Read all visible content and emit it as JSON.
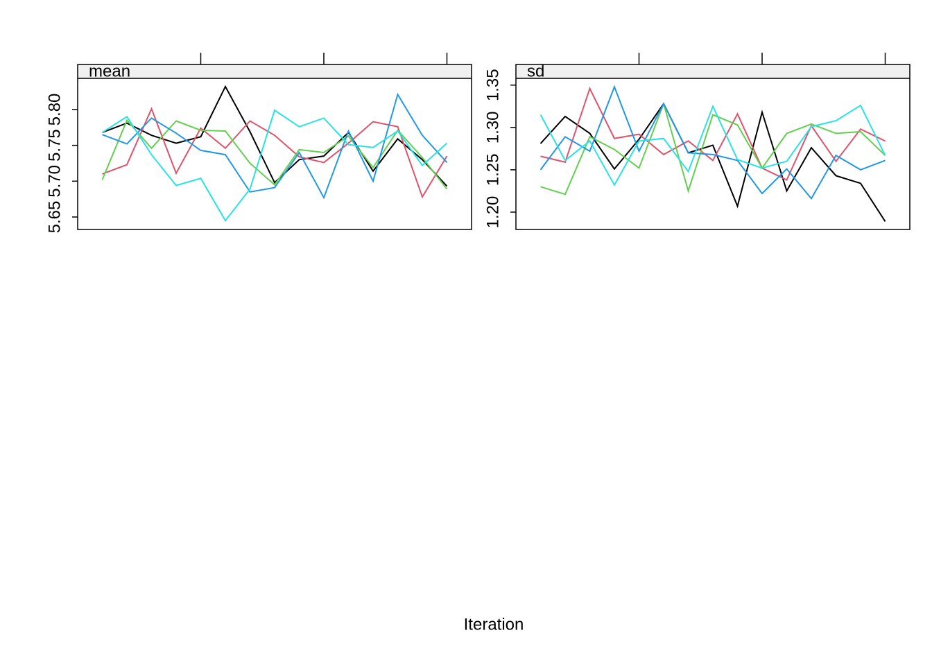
{
  "chart_data": [
    {
      "type": "line",
      "title": "mean",
      "x": [
        1,
        2,
        3,
        4,
        5,
        6,
        7,
        8,
        9,
        10,
        11,
        12,
        13,
        14,
        15
      ],
      "xlim": [
        0,
        16
      ],
      "xticks": [
        5,
        10,
        15
      ],
      "ylim": [
        5.6326,
        5.8435
      ],
      "yticks": [
        5.65,
        {
          "value": 5.7,
          "label": "5.70"
        },
        5.75,
        {
          "value": 5.8,
          "label": "5.80"
        }
      ],
      "series": [
        {
          "color": "#000000",
          "values": [
            5.768,
            5.781,
            5.764,
            5.753,
            5.762,
            5.832,
            5.769,
            5.698,
            5.73,
            5.735,
            5.768,
            5.714,
            5.759,
            5.73,
            5.693
          ]
        },
        {
          "color": "#DF536B",
          "values": [
            5.71,
            5.723,
            5.801,
            5.711,
            5.774,
            5.746,
            5.784,
            5.764,
            5.734,
            5.726,
            5.753,
            5.783,
            5.776,
            5.678,
            5.735
          ]
        },
        {
          "color": "#61D04F",
          "values": [
            5.702,
            5.785,
            5.746,
            5.784,
            5.771,
            5.77,
            5.725,
            5.695,
            5.744,
            5.74,
            5.763,
            5.719,
            5.771,
            5.733,
            5.689
          ]
        },
        {
          "color": "#2297E6",
          "values": [
            5.765,
            5.752,
            5.788,
            5.767,
            5.743,
            5.737,
            5.685,
            5.691,
            5.74,
            5.677,
            5.77,
            5.7,
            5.821,
            5.764,
            5.726
          ]
        },
        {
          "color": "#28E2E5",
          "values": [
            5.768,
            5.79,
            5.737,
            5.694,
            5.704,
            5.645,
            5.689,
            5.799,
            5.776,
            5.788,
            5.751,
            5.747,
            5.77,
            5.722,
            5.753
          ]
        }
      ]
    },
    {
      "type": "line",
      "title": "sd",
      "x": [
        1,
        2,
        3,
        4,
        5,
        6,
        7,
        8,
        9,
        10,
        11,
        12,
        13,
        14,
        15
      ],
      "xlim": [
        0,
        16
      ],
      "xticks": [
        5,
        10,
        15
      ],
      "ylim": [
        1.1795,
        1.358
      ],
      "yticks": [
        {
          "value": 1.2,
          "label": "1.20"
        },
        1.25,
        {
          "value": 1.3,
          "label": "1.30"
        },
        1.35
      ],
      "series": [
        {
          "color": "#000000",
          "values": [
            1.281,
            1.313,
            1.293,
            1.251,
            1.286,
            1.328,
            1.27,
            1.279,
            1.207,
            1.318,
            1.225,
            1.276,
            1.243,
            1.234,
            1.189
          ]
        },
        {
          "color": "#DF536B",
          "values": [
            1.266,
            1.259,
            1.346,
            1.287,
            1.292,
            1.268,
            1.284,
            1.261,
            1.316,
            1.252,
            1.238,
            1.302,
            1.26,
            1.298,
            1.284
          ]
        },
        {
          "color": "#61D04F",
          "values": [
            1.23,
            1.221,
            1.289,
            1.274,
            1.252,
            1.328,
            1.225,
            1.315,
            1.303,
            1.252,
            1.293,
            1.304,
            1.293,
            1.295,
            1.267
          ]
        },
        {
          "color": "#2297E6",
          "values": [
            1.25,
            1.289,
            1.272,
            1.348,
            1.272,
            1.328,
            1.27,
            1.268,
            1.261,
            1.222,
            1.251,
            1.216,
            1.267,
            1.25,
            1.261
          ]
        },
        {
          "color": "#28E2E5",
          "values": [
            1.315,
            1.261,
            1.284,
            1.232,
            1.284,
            1.287,
            1.248,
            1.325,
            1.262,
            1.252,
            1.26,
            1.301,
            1.308,
            1.326,
            1.267
          ]
        }
      ]
    }
  ],
  "xlabel": "Iteration"
}
